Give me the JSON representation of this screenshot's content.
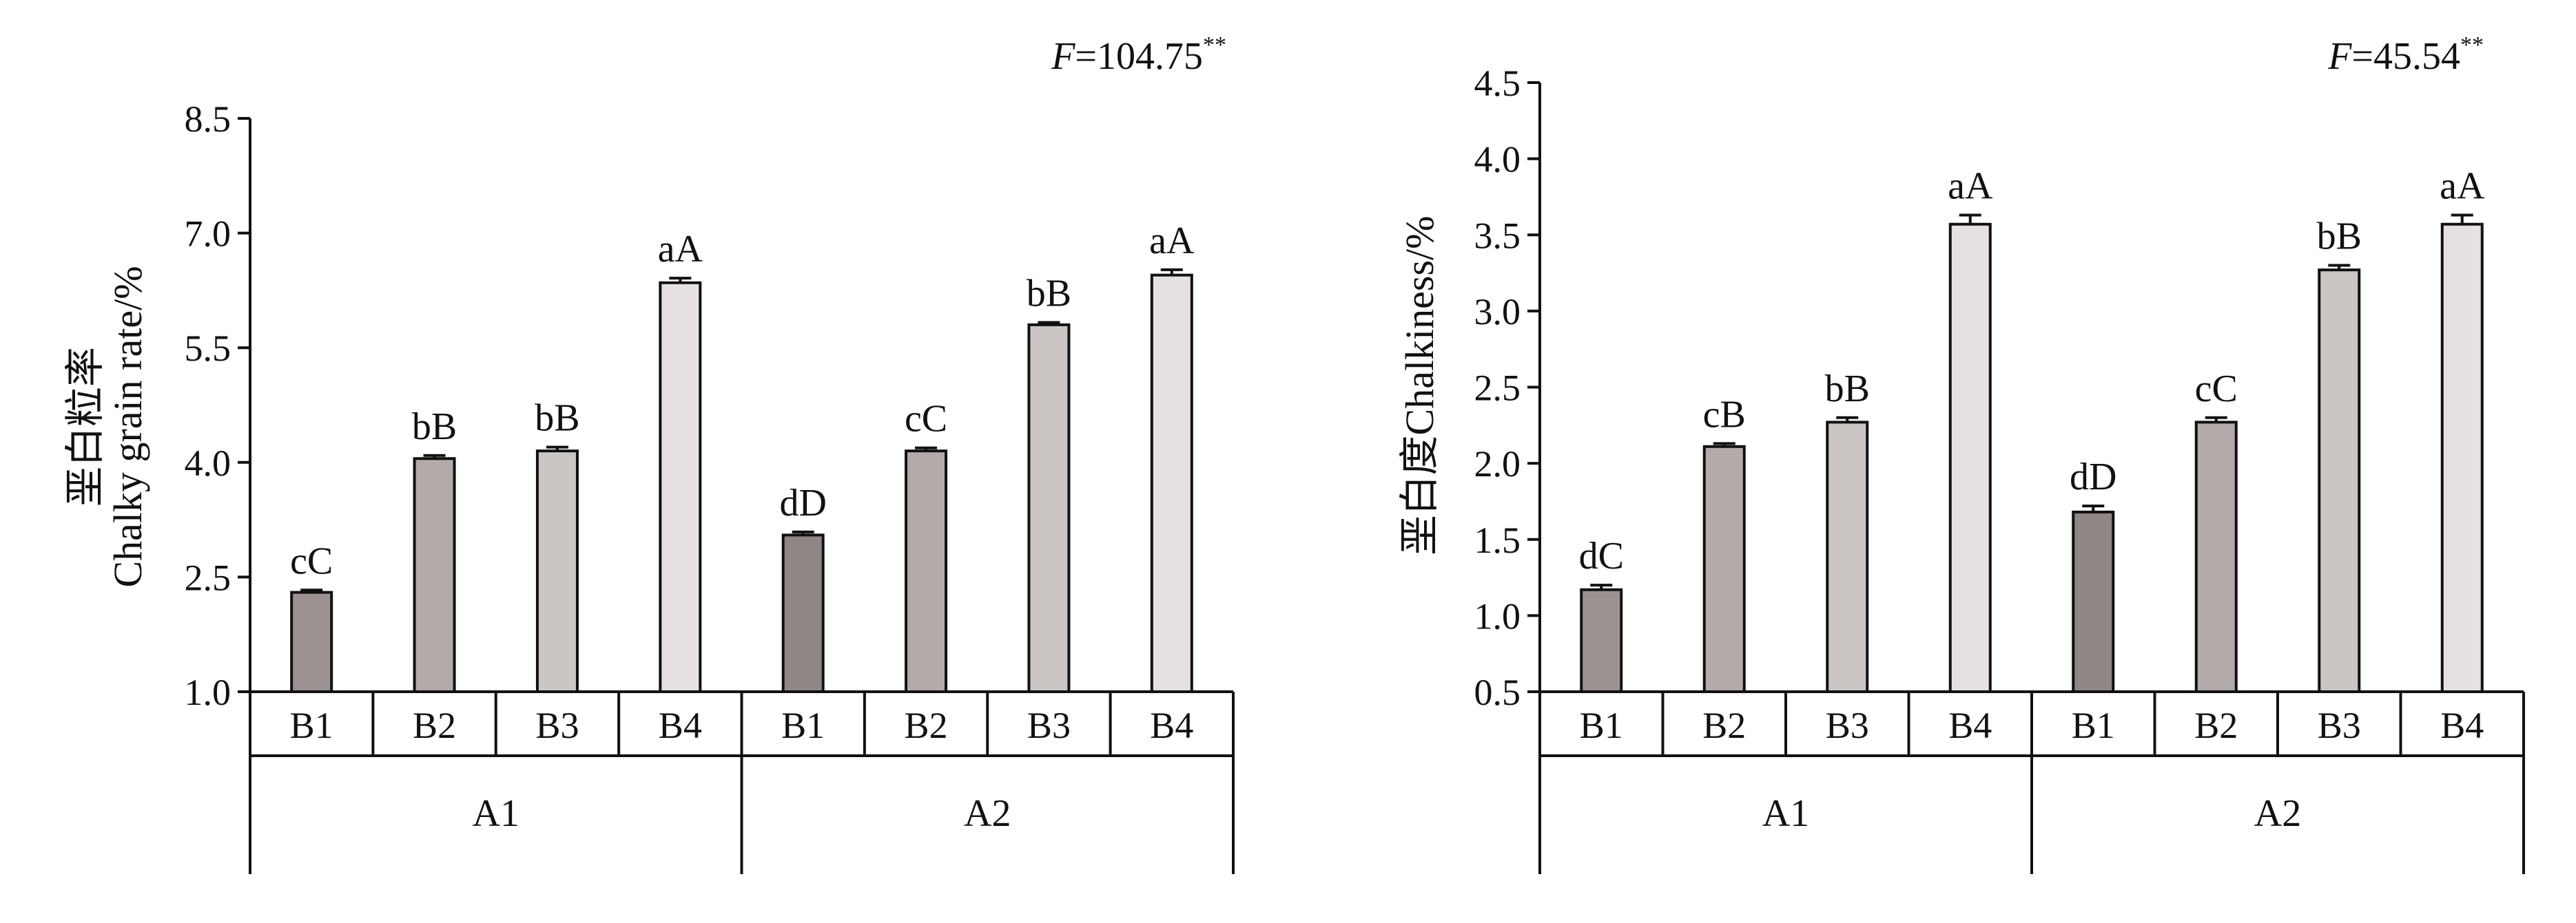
{
  "chart_data": [
    {
      "type": "bar",
      "title": "",
      "stat_text": "F=104.75**",
      "stat_label": "F",
      "stat_value": "=104.75",
      "stat_sup": "**",
      "ylabel_cn": "垩白粒率",
      "ylabel_en": "Chalky grain rate/%",
      "ylim": [
        1.0,
        8.5
      ],
      "yticks": [
        "1.0",
        "2.5",
        "4.0",
        "5.5",
        "7.0",
        "8.5"
      ],
      "ytick_values": [
        1.0,
        2.5,
        4.0,
        5.5,
        7.0,
        8.5
      ],
      "groups": [
        {
          "name": "A1",
          "categories": [
            "B1",
            "B2",
            "B3",
            "B4"
          ]
        },
        {
          "name": "A2",
          "categories": [
            "B1",
            "B2",
            "B3",
            "B4"
          ]
        }
      ],
      "values": [
        2.3,
        4.05,
        4.15,
        6.35,
        3.05,
        4.15,
        5.8,
        6.45
      ],
      "errors": [
        0.03,
        0.04,
        0.05,
        0.06,
        0.04,
        0.04,
        0.03,
        0.07
      ],
      "letters": [
        "cC",
        "bB",
        "bB",
        "aA",
        "dD",
        "cC",
        "bB",
        "aA"
      ],
      "bar_colors": [
        "#9b9291",
        "#b3abaa",
        "#cbc5c4",
        "#e6e1e0",
        "#8f8686",
        "#b3abaa",
        "#cbc5c4",
        "#e6e1e0"
      ]
    },
    {
      "type": "bar",
      "title": "",
      "stat_text": "F=45.54**",
      "stat_label": "F",
      "stat_value": "=45.54",
      "stat_sup": "**",
      "ylabel_cn": "垩白度",
      "ylabel_en": "Chalkiness/%",
      "ylim": [
        0.5,
        4.5
      ],
      "yticks": [
        "0.5",
        "1.0",
        "1.5",
        "2.0",
        "2.5",
        "3.0",
        "3.5",
        "4.0",
        "4.5"
      ],
      "ytick_values": [
        0.5,
        1.0,
        1.5,
        2.0,
        2.5,
        3.0,
        3.5,
        4.0,
        4.5
      ],
      "groups": [
        {
          "name": "A1",
          "categories": [
            "B1",
            "B2",
            "B3",
            "B4"
          ]
        },
        {
          "name": "A2",
          "categories": [
            "B1",
            "B2",
            "B3",
            "B4"
          ]
        }
      ],
      "values": [
        1.17,
        2.11,
        2.27,
        3.57,
        1.68,
        2.27,
        3.27,
        3.57
      ],
      "errors": [
        0.03,
        0.02,
        0.03,
        0.06,
        0.04,
        0.03,
        0.03,
        0.06
      ],
      "letters": [
        "dC",
        "cB",
        "bB",
        "aA",
        "dD",
        "cC",
        "bB",
        "aA"
      ],
      "bar_colors": [
        "#9b9291",
        "#b3abaa",
        "#cbc5c4",
        "#e6e1e0",
        "#8f8686",
        "#b3abaa",
        "#cbc5c4",
        "#e6e1e0"
      ]
    }
  ]
}
